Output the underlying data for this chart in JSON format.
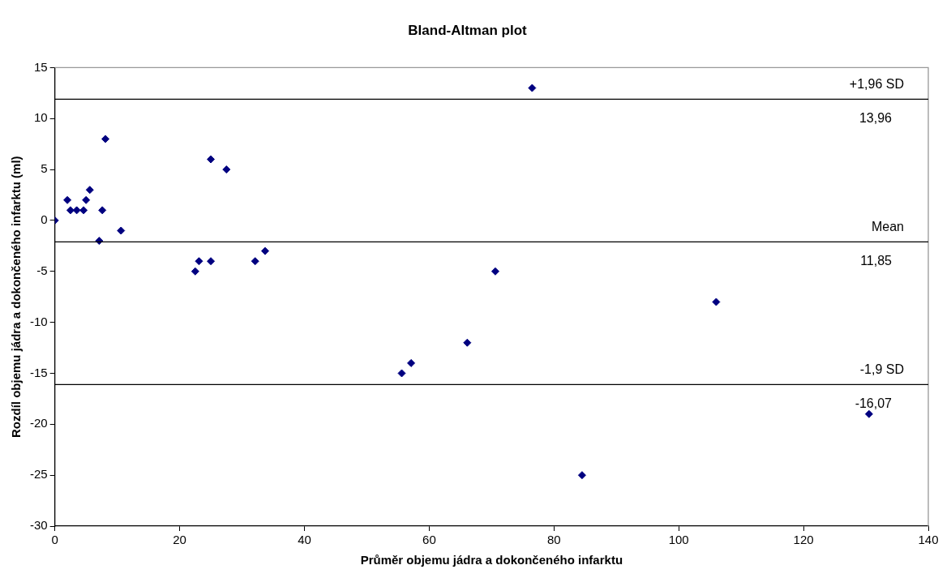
{
  "chart_data": {
    "type": "scatter",
    "title": "Bland-Altman plot",
    "xlabel": "Průměr objemu jádra a dokončeného infarktu",
    "ylabel": "Rozdíl objemu jádra a dokončeného infarktu (ml)",
    "series": [
      {
        "color": "#000080",
        "x": [
          0,
          2,
          2.5,
          3.5,
          4.6,
          5,
          5.6,
          7.1,
          7.6,
          8.1,
          10.6,
          22.5,
          23.1,
          25,
          25,
          27.5,
          32.1,
          33.7,
          55.6,
          57.1,
          66.1,
          70.6,
          76.5,
          84.5,
          106,
          130.5
        ],
        "values": [
          0,
          2,
          1,
          1,
          1,
          2,
          3,
          -2,
          1,
          8,
          -1,
          -5,
          -4,
          6,
          -4,
          5,
          -4,
          -3,
          -15,
          -14,
          -12,
          -5,
          13,
          -25,
          -8,
          -19
        ]
      }
    ],
    "marker": "diamond",
    "xlim": [
      0,
      140
    ],
    "xticks": [
      0,
      20,
      40,
      60,
      80,
      100,
      120,
      140
    ],
    "ylim": [
      -30,
      15
    ],
    "yticks": [
      -30,
      -25,
      -20,
      -15,
      -10,
      -5,
      0,
      5,
      10,
      15
    ],
    "grid": false,
    "legend": false,
    "ref_lines": [
      {
        "axis": "y",
        "value": 11.9,
        "label": "+1,96 SD",
        "color": "#000000"
      },
      {
        "axis": "y",
        "value": -2.1,
        "label": "Mean",
        "color": "#000000"
      },
      {
        "axis": "y",
        "value": -16.1,
        "label": "-1,9 SD",
        "color": "#000000"
      }
    ],
    "annotations": [
      "13,96",
      "11,85",
      "-16,07"
    ]
  }
}
